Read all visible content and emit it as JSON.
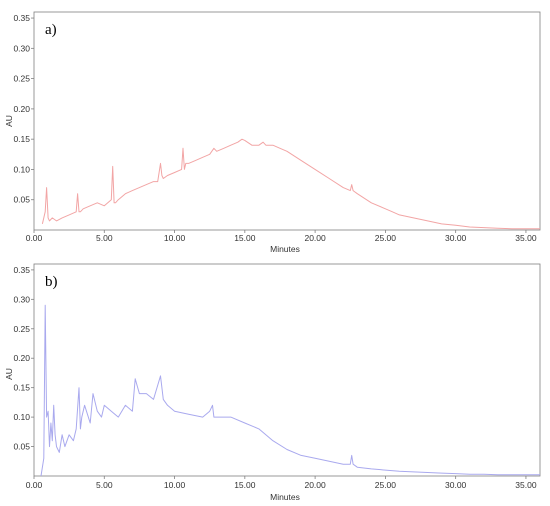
{
  "chart_data": [
    {
      "type": "line",
      "panel_label": "a)",
      "xlabel": "Minutes",
      "ylabel": "AU",
      "xlim": [
        0,
        36
      ],
      "ylim": [
        0,
        0.36
      ],
      "grid": false,
      "color": "#f2a5a5",
      "x_ticks": [
        "0.00",
        "5.00",
        "10.00",
        "15.00",
        "20.00",
        "25.00",
        "30.00",
        "35.00"
      ],
      "x_tick_values": [
        0,
        5,
        10,
        15,
        20,
        25,
        30,
        35
      ],
      "y_ticks": [
        "0.05",
        "0.10",
        "0.15",
        "0.20",
        "0.25",
        "0.30",
        "0.35"
      ],
      "y_tick_values": [
        0.05,
        0.1,
        0.15,
        0.2,
        0.25,
        0.3,
        0.35
      ],
      "series": [
        {
          "x": [
            0.6,
            0.8,
            0.9,
            1.0,
            1.1,
            1.3,
            1.6,
            2.0,
            2.5,
            3.0,
            3.1,
            3.2,
            3.3,
            3.5,
            4.0,
            4.5,
            5.0,
            5.5,
            5.6,
            5.7,
            5.8,
            6.0,
            6.5,
            7.0,
            7.5,
            8.0,
            8.5,
            8.8,
            9.0,
            9.1,
            9.2,
            9.5,
            10.0,
            10.5,
            10.6,
            10.7,
            10.8,
            11.0,
            11.5,
            12.0,
            12.5,
            12.8,
            13.0,
            13.5,
            14.0,
            14.5,
            14.8,
            15.0,
            15.5,
            16.0,
            16.3,
            16.5,
            17.0,
            17.5,
            18.0,
            19.0,
            20.0,
            21.0,
            22.0,
            22.5,
            22.6,
            22.7,
            23.0,
            24.0,
            25.0,
            25.5,
            26.0,
            27.0,
            28.0,
            29.0,
            30.0,
            31.0,
            32.0,
            33.0,
            34.0,
            35.0,
            36.0
          ],
          "y": [
            0.01,
            0.03,
            0.07,
            0.02,
            0.015,
            0.02,
            0.015,
            0.02,
            0.025,
            0.03,
            0.06,
            0.03,
            0.03,
            0.035,
            0.04,
            0.045,
            0.04,
            0.05,
            0.105,
            0.045,
            0.045,
            0.05,
            0.06,
            0.065,
            0.07,
            0.075,
            0.08,
            0.08,
            0.11,
            0.09,
            0.085,
            0.09,
            0.095,
            0.1,
            0.135,
            0.1,
            0.11,
            0.11,
            0.115,
            0.12,
            0.125,
            0.135,
            0.13,
            0.135,
            0.14,
            0.145,
            0.15,
            0.148,
            0.14,
            0.14,
            0.145,
            0.14,
            0.14,
            0.135,
            0.13,
            0.115,
            0.1,
            0.085,
            0.07,
            0.065,
            0.075,
            0.065,
            0.06,
            0.045,
            0.035,
            0.03,
            0.025,
            0.02,
            0.015,
            0.01,
            0.008,
            0.005,
            0.004,
            0.003,
            0.002,
            0.002,
            0.002
          ]
        }
      ]
    },
    {
      "type": "line",
      "panel_label": "b)",
      "xlabel": "Minutes",
      "ylabel": "AU",
      "xlim": [
        0,
        36
      ],
      "ylim": [
        0,
        0.36
      ],
      "grid": false,
      "color": "#a9a9ee",
      "x_ticks": [
        "0.00",
        "5.00",
        "10.00",
        "15.00",
        "20.00",
        "25.00",
        "30.00",
        "35.00"
      ],
      "x_tick_values": [
        0,
        5,
        10,
        15,
        20,
        25,
        30,
        35
      ],
      "y_ticks": [
        "0.05",
        "0.10",
        "0.15",
        "0.20",
        "0.25",
        "0.30",
        "0.35"
      ],
      "y_tick_values": [
        0.05,
        0.1,
        0.15,
        0.2,
        0.25,
        0.3,
        0.35
      ],
      "series": [
        {
          "x": [
            0.5,
            0.7,
            0.8,
            0.9,
            1.0,
            1.1,
            1.2,
            1.3,
            1.4,
            1.5,
            1.6,
            1.8,
            2.0,
            2.2,
            2.5,
            2.8,
            3.0,
            3.2,
            3.3,
            3.4,
            3.6,
            4.0,
            4.2,
            4.5,
            4.8,
            5.0,
            5.5,
            6.0,
            6.5,
            7.0,
            7.2,
            7.5,
            8.0,
            8.5,
            9.0,
            9.2,
            9.5,
            10.0,
            11.0,
            12.0,
            12.5,
            12.7,
            12.8,
            13.0,
            14.0,
            15.0,
            16.0,
            17.0,
            18.0,
            19.0,
            20.0,
            21.0,
            22.0,
            22.5,
            22.6,
            22.7,
            23.0,
            24.0,
            25.0,
            26.0,
            27.0,
            28.0,
            29.0,
            30.0,
            31.0,
            32.0,
            33.0,
            34.0,
            35.0,
            36.0
          ],
          "y": [
            0.0,
            0.03,
            0.29,
            0.1,
            0.11,
            0.05,
            0.09,
            0.06,
            0.12,
            0.07,
            0.05,
            0.04,
            0.07,
            0.05,
            0.07,
            0.06,
            0.08,
            0.15,
            0.08,
            0.1,
            0.12,
            0.09,
            0.14,
            0.11,
            0.1,
            0.12,
            0.11,
            0.1,
            0.12,
            0.11,
            0.165,
            0.14,
            0.14,
            0.13,
            0.17,
            0.13,
            0.12,
            0.11,
            0.105,
            0.1,
            0.11,
            0.12,
            0.1,
            0.1,
            0.1,
            0.09,
            0.08,
            0.06,
            0.045,
            0.035,
            0.03,
            0.025,
            0.02,
            0.02,
            0.035,
            0.02,
            0.015,
            0.012,
            0.01,
            0.008,
            0.007,
            0.006,
            0.005,
            0.004,
            0.003,
            0.003,
            0.002,
            0.002,
            0.002,
            0.002
          ]
        }
      ]
    }
  ]
}
